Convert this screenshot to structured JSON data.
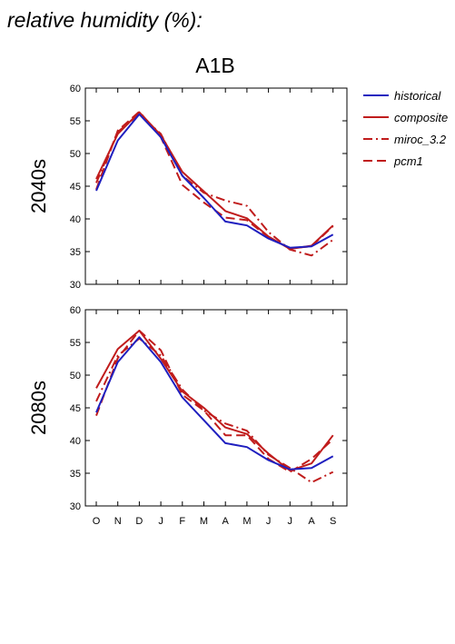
{
  "heading": "relative humidity (%):",
  "scenario": "A1B",
  "colors": {
    "historical": "#1f1fbf",
    "projections": "#c01c1c"
  },
  "chart_data": {
    "type": "line",
    "categories": [
      "O",
      "N",
      "D",
      "J",
      "F",
      "M",
      "A",
      "M",
      "J",
      "J",
      "A",
      "S"
    ],
    "ylim": [
      30,
      60
    ],
    "yticks": [
      30,
      35,
      40,
      45,
      50,
      55,
      60
    ],
    "legend": [
      {
        "name": "historical",
        "style": "solid",
        "color": "#1f1fbf"
      },
      {
        "name": "composite",
        "style": "solid",
        "color": "#c01c1c"
      },
      {
        "name": "miroc_3.2",
        "style": "dashdot",
        "color": "#c01c1c"
      },
      {
        "name": "pcm1",
        "style": "dashed",
        "color": "#c01c1c"
      }
    ],
    "legend_position": "right",
    "panels": [
      {
        "label": "2040s",
        "series": [
          {
            "name": "historical",
            "values": [
              44.3,
              52.0,
              56.0,
              52.5,
              46.6,
              43.2,
              39.6,
              39.0,
              37.0,
              35.6,
              35.8,
              37.6
            ]
          },
          {
            "name": "composite",
            "values": [
              46.1,
              53.0,
              56.3,
              52.8,
              47.2,
              44.2,
              41.2,
              40.1,
              37.3,
              35.4,
              35.9,
              39.0
            ]
          },
          {
            "name": "miroc_3.2",
            "values": [
              45.5,
              53.3,
              56.0,
              53.0,
              46.6,
              44.0,
              42.8,
              42.0,
              38.0,
              35.3,
              34.4,
              36.8
            ]
          },
          {
            "name": "pcm1",
            "values": [
              44.5,
              53.5,
              56.4,
              52.5,
              45.2,
              42.5,
              40.2,
              39.8,
              37.2,
              35.5,
              35.8,
              38.9
            ]
          }
        ]
      },
      {
        "label": "2080s",
        "series": [
          {
            "name": "historical",
            "values": [
              44.3,
              52.0,
              55.8,
              52.0,
              46.6,
              43.1,
              39.6,
              39.0,
              37.0,
              35.6,
              35.8,
              37.6
            ]
          },
          {
            "name": "composite",
            "values": [
              48.0,
              54.0,
              56.8,
              52.5,
              47.5,
              45.0,
              42.0,
              41.0,
              38.0,
              35.4,
              36.5,
              40.8
            ]
          },
          {
            "name": "miroc_3.2",
            "values": [
              46.0,
              53.0,
              55.6,
              53.0,
              47.8,
              44.6,
              42.6,
              41.5,
              37.8,
              35.8,
              33.6,
              35.2
            ]
          },
          {
            "name": "pcm1",
            "values": [
              43.8,
              52.6,
              56.8,
              53.8,
              47.0,
              44.6,
              40.8,
              40.8,
              37.2,
              35.2,
              37.2,
              40.2
            ]
          }
        ]
      }
    ]
  }
}
